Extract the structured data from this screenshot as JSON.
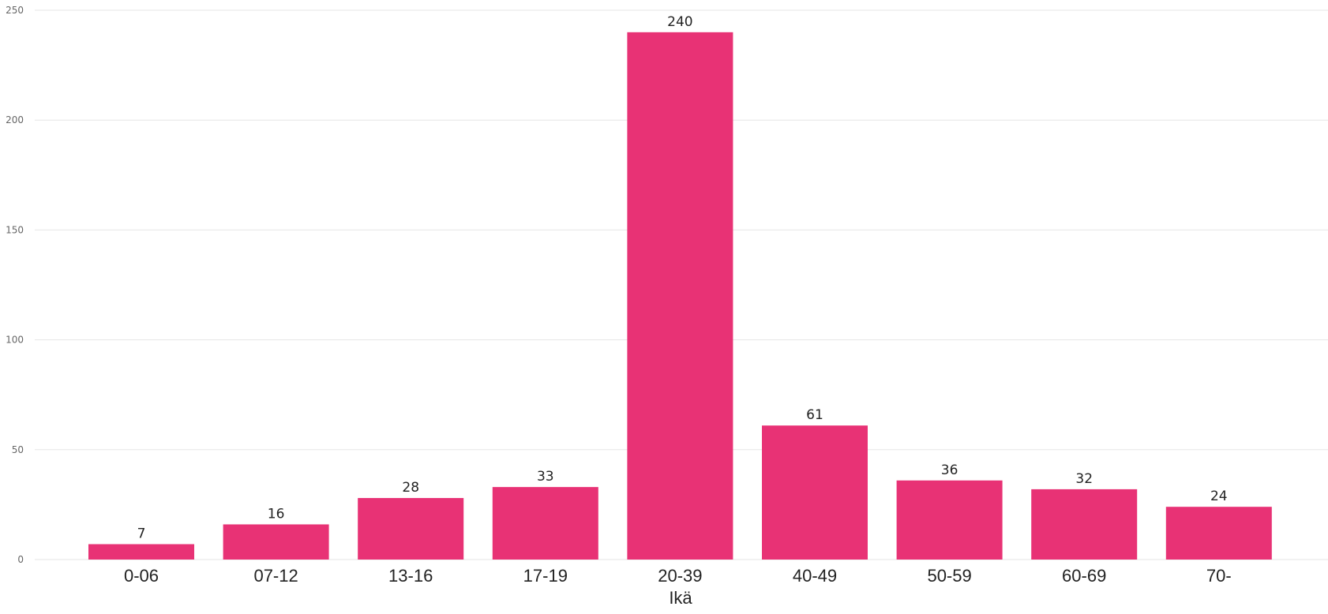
{
  "chart_data": {
    "type": "bar",
    "categories": [
      "0-06",
      "07-12",
      "13-16",
      "17-19",
      "20-39",
      "40-49",
      "50-59",
      "60-69",
      "70-"
    ],
    "values": [
      7,
      16,
      28,
      33,
      240,
      61,
      36,
      32,
      24
    ],
    "xlabel": "Ikä",
    "ylabel": "",
    "ylim": [
      0,
      250
    ],
    "yticks": [
      0,
      50,
      100,
      150,
      200,
      250
    ],
    "grid": true,
    "bar_color": "#E83275",
    "data_labels": true
  }
}
